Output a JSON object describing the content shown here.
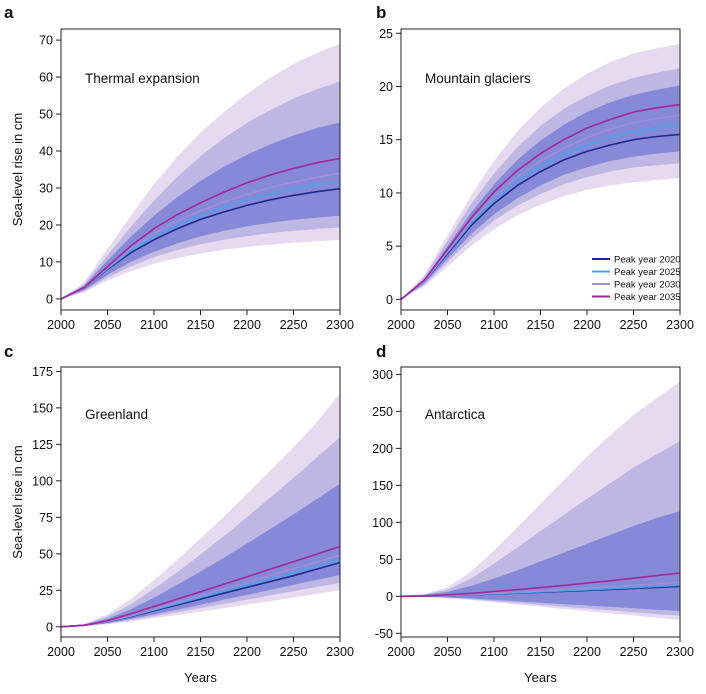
{
  "colors": {
    "peak_2020": "#1f2a8c",
    "peak_2025": "#4aa3e8",
    "peak_2030": "#9b8fd8",
    "peak_2035": "#a3289c",
    "band_outer": "#e4d8ee",
    "band_mid": "#b9b2e2",
    "band_inner": "#7f83d6"
  },
  "legend": {
    "items": [
      "Peak year 2020",
      "Peak year 2025",
      "Peak year 2030",
      "Peak year 2035"
    ]
  },
  "chart_data": [
    {
      "letter": "a",
      "type": "line",
      "title": "Thermal expansion",
      "xlabel": "",
      "ylabel": "Sea-level rise in cm",
      "xlim": [
        2000,
        2300
      ],
      "ylim": [
        -3,
        73
      ],
      "xticks": [
        2000,
        2050,
        2100,
        2150,
        2200,
        2250,
        2300
      ],
      "yticks": [
        0,
        10,
        20,
        30,
        40,
        50,
        60,
        70
      ],
      "x": [
        2000,
        2025,
        2050,
        2075,
        2100,
        2125,
        2150,
        2175,
        2200,
        2225,
        2250,
        2275,
        2300
      ],
      "series": [
        {
          "name": "Peak year 2020",
          "values": [
            0,
            3.0,
            8.0,
            12.5,
            16.0,
            19.0,
            21.5,
            23.5,
            25.3,
            26.8,
            28.0,
            29.0,
            29.8
          ]
        },
        {
          "name": "Peak year 2025",
          "values": [
            0,
            3.0,
            8.2,
            13.0,
            16.8,
            20.0,
            22.6,
            24.8,
            26.8,
            28.4,
            29.8,
            30.9,
            31.8
          ]
        },
        {
          "name": "Peak year 2030",
          "values": [
            0,
            3.0,
            8.4,
            13.5,
            17.6,
            21.0,
            23.8,
            26.2,
            28.3,
            30.1,
            31.6,
            32.9,
            34.0
          ]
        },
        {
          "name": "Peak year 2035",
          "values": [
            0,
            3.1,
            8.7,
            14.3,
            19.0,
            22.8,
            26.0,
            28.9,
            31.4,
            33.5,
            35.3,
            36.8,
            38.0
          ]
        }
      ],
      "band_outer": {
        "lower": [
          0,
          1.8,
          5.0,
          7.5,
          9.5,
          11.0,
          12.3,
          13.3,
          14.1,
          14.7,
          15.2,
          15.6,
          16.0
        ],
        "upper": [
          0,
          4.5,
          13.5,
          22.5,
          31.0,
          38.5,
          45.0,
          50.5,
          55.5,
          59.8,
          63.5,
          66.5,
          69.0
        ]
      },
      "band_mid": {
        "lower": [
          0,
          2.1,
          5.8,
          8.8,
          11.3,
          13.2,
          14.8,
          16.0,
          17.0,
          17.8,
          18.4,
          18.9,
          19.3
        ],
        "upper": [
          0,
          4.0,
          11.8,
          19.5,
          26.6,
          33.0,
          38.6,
          43.4,
          47.6,
          51.1,
          54.2,
          56.7,
          58.8
        ]
      },
      "band_inner": {
        "lower": [
          0,
          2.4,
          6.5,
          10.0,
          12.8,
          15.0,
          16.9,
          18.4,
          19.6,
          20.6,
          21.4,
          22.0,
          22.5
        ],
        "upper": [
          0,
          3.6,
          10.4,
          16.8,
          22.5,
          27.5,
          31.9,
          35.7,
          39.0,
          41.8,
          44.2,
          46.2,
          47.8
        ]
      },
      "annotations": []
    },
    {
      "letter": "b",
      "type": "line",
      "title": "Mountain glaciers",
      "xlabel": "",
      "ylabel": "",
      "xlim": [
        2000,
        2300
      ],
      "ylim": [
        -1,
        25.4
      ],
      "xticks": [
        2000,
        2050,
        2100,
        2150,
        2200,
        2250,
        2300
      ],
      "yticks": [
        0,
        5,
        10,
        15,
        20,
        25
      ],
      "x": [
        2000,
        2025,
        2050,
        2075,
        2100,
        2125,
        2150,
        2175,
        2200,
        2225,
        2250,
        2275,
        2300
      ],
      "series": [
        {
          "name": "Peak year 2020",
          "values": [
            0,
            1.7,
            4.3,
            6.9,
            9.0,
            10.7,
            12.0,
            13.1,
            13.9,
            14.5,
            15.0,
            15.3,
            15.5
          ]
        },
        {
          "name": "Peak year 2025",
          "values": [
            0,
            1.7,
            4.4,
            7.1,
            9.3,
            11.1,
            12.5,
            13.6,
            14.5,
            15.2,
            15.7,
            16.1,
            16.4
          ]
        },
        {
          "name": "Peak year 2030",
          "values": [
            0,
            1.7,
            4.5,
            7.3,
            9.6,
            11.5,
            13.0,
            14.2,
            15.2,
            16.0,
            16.6,
            17.0,
            17.3
          ]
        },
        {
          "name": "Peak year 2035",
          "values": [
            0,
            1.8,
            4.7,
            7.6,
            10.1,
            12.1,
            13.7,
            15.0,
            16.1,
            16.9,
            17.6,
            18.0,
            18.3
          ]
        }
      ],
      "band_outer": {
        "lower": [
          0,
          1.2,
          3.1,
          5.0,
          6.6,
          7.9,
          8.9,
          9.7,
          10.3,
          10.7,
          11.0,
          11.2,
          11.4
        ],
        "upper": [
          0,
          2.3,
          6.0,
          9.7,
          13.0,
          15.8,
          18.0,
          19.8,
          21.2,
          22.3,
          23.1,
          23.6,
          24.0
        ]
      },
      "band_mid": {
        "lower": [
          0,
          1.4,
          3.5,
          5.6,
          7.4,
          8.8,
          9.9,
          10.8,
          11.5,
          12.0,
          12.4,
          12.6,
          12.8
        ],
        "upper": [
          0,
          2.1,
          5.5,
          8.9,
          11.8,
          14.3,
          16.3,
          17.9,
          19.1,
          20.1,
          20.8,
          21.3,
          21.7
        ]
      },
      "band_inner": {
        "lower": [
          0,
          1.5,
          3.8,
          6.1,
          8.0,
          9.5,
          10.7,
          11.7,
          12.4,
          13.0,
          13.4,
          13.7,
          13.9
        ],
        "upper": [
          0,
          1.9,
          5.0,
          8.1,
          10.8,
          13.1,
          14.9,
          16.4,
          17.6,
          18.5,
          19.2,
          19.7,
          20.1
        ]
      },
      "annotations": []
    },
    {
      "letter": "c",
      "type": "line",
      "title": "Greenland",
      "xlabel": "Years",
      "ylabel": "Sea-level rise in cm",
      "xlim": [
        2000,
        2300
      ],
      "ylim": [
        -7,
        178
      ],
      "xticks": [
        2000,
        2050,
        2100,
        2150,
        2200,
        2250,
        2300
      ],
      "yticks": [
        0,
        25,
        50,
        75,
        100,
        125,
        150,
        175
      ],
      "x": [
        2000,
        2025,
        2050,
        2075,
        2100,
        2125,
        2150,
        2175,
        2200,
        2225,
        2250,
        2275,
        2300
      ],
      "series": [
        {
          "name": "Peak year 2020",
          "values": [
            0,
            1.0,
            3.5,
            7.0,
            11.0,
            15.0,
            19.0,
            23.0,
            27.0,
            31.0,
            35.0,
            39.5,
            44.0
          ]
        },
        {
          "name": "Peak year 2025",
          "values": [
            0,
            1.0,
            3.6,
            7.3,
            11.5,
            15.8,
            20.0,
            24.3,
            28.6,
            32.9,
            37.2,
            41.6,
            46.0
          ]
        },
        {
          "name": "Peak year 2030",
          "values": [
            0,
            1.0,
            3.7,
            7.6,
            12.1,
            16.7,
            21.2,
            25.8,
            30.4,
            35.0,
            39.7,
            44.4,
            49.0
          ]
        },
        {
          "name": "Peak year 2035",
          "values": [
            0,
            1.1,
            4.2,
            8.8,
            13.9,
            19.0,
            24.0,
            29.1,
            34.3,
            39.5,
            44.6,
            49.8,
            55.0
          ]
        }
      ],
      "band_outer": {
        "lower": [
          0,
          0.5,
          1.8,
          3.6,
          5.8,
          8.1,
          10.4,
          12.8,
          15.2,
          17.6,
          20.0,
          22.5,
          25.0
        ],
        "upper": [
          0,
          2.0,
          8.5,
          19.0,
          32.0,
          46.0,
          60.5,
          75.5,
          91.0,
          107.0,
          123.0,
          140.0,
          160.0
        ]
      },
      "band_mid": {
        "lower": [
          0,
          0.6,
          2.2,
          4.5,
          7.2,
          10.0,
          12.8,
          15.7,
          18.6,
          21.5,
          24.4,
          27.3,
          30.0
        ],
        "upper": [
          0,
          1.7,
          7.0,
          15.5,
          26.0,
          37.5,
          49.5,
          62.0,
          75.0,
          88.5,
          102.0,
          116.0,
          130.0
        ]
      },
      "band_inner": {
        "lower": [
          0,
          0.7,
          2.6,
          5.3,
          8.5,
          11.8,
          15.1,
          18.5,
          21.9,
          25.3,
          28.7,
          32.1,
          35.5
        ],
        "upper": [
          0,
          1.4,
          5.5,
          12.0,
          20.0,
          28.8,
          37.8,
          47.2,
          57.0,
          67.0,
          77.0,
          87.5,
          98.0
        ]
      },
      "annotations": []
    },
    {
      "letter": "d",
      "type": "line",
      "title": "Antarctica",
      "xlabel": "Years",
      "ylabel": "",
      "xlim": [
        2000,
        2300
      ],
      "ylim": [
        -55,
        310
      ],
      "xticks": [
        2000,
        2050,
        2100,
        2150,
        2200,
        2250,
        2300
      ],
      "yticks": [
        -50,
        0,
        50,
        100,
        150,
        200,
        250,
        300
      ],
      "x": [
        2000,
        2025,
        2050,
        2075,
        2100,
        2125,
        2150,
        2175,
        2200,
        2225,
        2250,
        2275,
        2300
      ],
      "series": [
        {
          "name": "Peak year 2020",
          "values": [
            0,
            0.3,
            1.0,
            2.0,
            3.2,
            4.4,
            5.6,
            6.8,
            8.0,
            9.3,
            10.7,
            12.1,
            13.5
          ]
        },
        {
          "name": "Peak year 2025",
          "values": [
            0,
            0.3,
            1.1,
            2.2,
            3.5,
            4.8,
            6.1,
            7.4,
            8.8,
            10.3,
            11.8,
            13.4,
            15.0
          ]
        },
        {
          "name": "Peak year 2030",
          "values": [
            0,
            0.4,
            1.3,
            2.6,
            4.2,
            5.8,
            7.5,
            9.2,
            11.0,
            12.9,
            14.9,
            16.9,
            19.0
          ]
        },
        {
          "name": "Peak year 2035",
          "values": [
            0,
            0.6,
            2.0,
            4.0,
            6.5,
            9.0,
            11.8,
            14.7,
            17.8,
            21.0,
            24.5,
            28.0,
            31.5
          ]
        }
      ],
      "band_outer": {
        "lower": [
          0,
          -0.8,
          -2.5,
          -5.0,
          -8.0,
          -11.0,
          -14.0,
          -17.0,
          -20.0,
          -23.0,
          -26.0,
          -29.0,
          -32.0
        ],
        "upper": [
          0,
          3.0,
          12.0,
          33.0,
          62.0,
          93.0,
          125.0,
          157.0,
          189.0,
          218.0,
          245.0,
          268.0,
          290.0
        ]
      },
      "band_mid": {
        "lower": [
          0,
          -0.6,
          -2.0,
          -4.0,
          -6.5,
          -9.0,
          -11.5,
          -14.0,
          -16.5,
          -19.0,
          -21.5,
          -24.0,
          -26.0
        ],
        "upper": [
          0,
          2.5,
          9.0,
          24.0,
          44.0,
          66.0,
          88.0,
          110.0,
          132.0,
          153.0,
          174.0,
          192.0,
          210.0
        ]
      },
      "band_inner": {
        "lower": [
          0,
          -0.4,
          -1.5,
          -3.0,
          -4.8,
          -6.7,
          -8.6,
          -10.5,
          -12.4,
          -14.3,
          -16.2,
          -18.1,
          -20.0
        ],
        "upper": [
          0,
          1.8,
          6.0,
          14.0,
          24.0,
          35.0,
          47.0,
          59.0,
          71.0,
          83.0,
          95.0,
          106.0,
          115.0
        ]
      },
      "annotations": []
    }
  ]
}
